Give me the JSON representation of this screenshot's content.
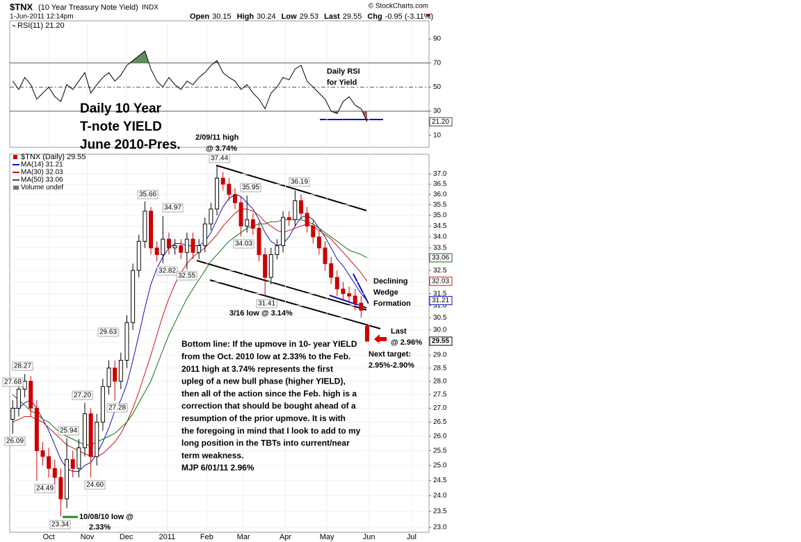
{
  "header": {
    "symbol": "$TNX",
    "name": "(10 Year Treasury Note Yield)",
    "exchange": "INDX",
    "date": "1-Jun-2011 12:14pm",
    "copyright": "© StockCharts.com",
    "quote": [
      {
        "label": "Open",
        "value": "30.15"
      },
      {
        "label": "High",
        "value": "30.24"
      },
      {
        "label": "Low",
        "value": "29.53"
      },
      {
        "label": "Last",
        "value": "29.55"
      },
      {
        "label": "Chg",
        "value": "-0.95 (-3.11%)"
      }
    ]
  },
  "chart_data": [
    {
      "type": "line",
      "legend": "RSI(11) 21.20",
      "marker_label": "21.20",
      "color": "#000000",
      "overbought_color": "#5f8f5f",
      "oversold_color": "#a06060",
      "ylim": [
        0,
        105
      ],
      "yticks": [
        10,
        30,
        50,
        70,
        90
      ],
      "reference_lines": [
        {
          "value": 70,
          "style": "solid"
        },
        {
          "value": 50,
          "style": "dashed"
        },
        {
          "value": 30,
          "style": "solid"
        }
      ],
      "xlim": [
        -0.5,
        69.3
      ],
      "values": [
        55,
        48,
        58,
        52,
        40,
        45,
        50,
        42,
        38,
        52,
        48,
        55,
        62,
        45,
        52,
        58,
        62,
        55,
        60,
        68,
        72,
        76,
        80,
        65,
        55,
        50,
        58,
        52,
        48,
        55,
        52,
        58,
        62,
        68,
        72,
        62,
        58,
        55,
        48,
        52,
        45,
        40,
        32,
        45,
        50,
        58,
        56,
        65,
        68,
        55,
        50,
        45,
        40,
        30,
        28,
        38,
        42,
        35,
        32,
        21.2
      ]
    },
    {
      "type": "candlestick",
      "legend": "$TNX (Daily) 29.55",
      "extra_legend": "Volume undef",
      "log_scale": true,
      "grid": true,
      "up_color": "#000000",
      "down_color": "#cc0000",
      "ylim": [
        22.85,
        38
      ],
      "yticks": [
        {
          "value": 23,
          "label": "23.0"
        },
        {
          "value": 23.5,
          "label": "23.5"
        },
        {
          "value": 24,
          "label": "24.0"
        },
        {
          "value": 24.5,
          "label": "24.5"
        },
        {
          "value": 25,
          "label": "25.0"
        },
        {
          "value": 25.5,
          "label": "25.5"
        },
        {
          "value": 26,
          "label": "26.0"
        },
        {
          "value": 26.5,
          "label": "26.5"
        },
        {
          "value": 27,
          "label": "27.0"
        },
        {
          "value": 27.5,
          "label": "27.5"
        },
        {
          "value": 28,
          "label": "28.0"
        },
        {
          "value": 28.5,
          "label": "28.5"
        },
        {
          "value": 29,
          "label": "29.0"
        },
        {
          "value": 29.5,
          "label": "29.5"
        },
        {
          "value": 30,
          "label": "30.0"
        },
        {
          "value": 30.5,
          "label": "30.5"
        },
        {
          "value": 31,
          "label": "31.0"
        },
        {
          "value": 31.5,
          "label": "31.5"
        },
        {
          "value": 32,
          "label": "32.0"
        },
        {
          "value": 32.5,
          "label": "32.5"
        },
        {
          "value": 33,
          "label": "33.0"
        },
        {
          "value": 33.5,
          "label": "33.5"
        },
        {
          "value": 34,
          "label": "34.0"
        },
        {
          "value": 34.5,
          "label": "34.5"
        },
        {
          "value": 35,
          "label": "35.0"
        },
        {
          "value": 35.5,
          "label": "35.5"
        },
        {
          "value": 36,
          "label": "36.0"
        },
        {
          "value": 36.5,
          "label": "36.5"
        },
        {
          "value": 37,
          "label": "37.0"
        }
      ],
      "xlim": [
        -0.5,
        69.3
      ],
      "xticks": [
        {
          "value": 6,
          "label": "Oct"
        },
        {
          "value": 12.4,
          "label": "Nov"
        },
        {
          "value": 18.9,
          "label": "Dec"
        },
        {
          "value": 25.7,
          "label": "2011"
        },
        {
          "value": 32.3,
          "label": "Feb"
        },
        {
          "value": 38.4,
          "label": "Mar"
        },
        {
          "value": 45.4,
          "label": "Apr"
        },
        {
          "value": 52.3,
          "label": "May"
        },
        {
          "value": 59.3,
          "label": "Jun"
        },
        {
          "value": 66.4,
          "label": "Jul"
        }
      ],
      "open": [
        26.6,
        27.0,
        27.7,
        28.0,
        27.0,
        25.5,
        25.3,
        24.9,
        24.6,
        23.9,
        25.2,
        24.9,
        25.6,
        26.8,
        25.3,
        26.5,
        27.8,
        28.5,
        28.0,
        28.8,
        30.3,
        32.5,
        33.8,
        35.2,
        33.5,
        33.2,
        33.9,
        33.5,
        33.6,
        33.3,
        33.9,
        33.3,
        33.6,
        34.6,
        35.3,
        36.8,
        36.5,
        36.0,
        35.6,
        34.5,
        34.8,
        34.4,
        33.2,
        32.2,
        33.2,
        33.6,
        34.9,
        34.8,
        35.7,
        35.1,
        34.5,
        34.0,
        33.5,
        32.8,
        32.2,
        31.7,
        31.5,
        31.4,
        31.1,
        30.15
      ],
      "high": [
        27.3,
        28.0,
        28.27,
        28.2,
        27.3,
        25.8,
        25.6,
        25.2,
        24.9,
        25.94,
        25.5,
        25.9,
        27.2,
        27.0,
        26.8,
        28.1,
        28.8,
        28.8,
        29.1,
        30.6,
        32.8,
        34.1,
        35.66,
        35.4,
        33.8,
        34.97,
        34.2,
        33.9,
        33.9,
        34.2,
        34.2,
        33.9,
        34.9,
        35.6,
        37.44,
        37.1,
        36.8,
        36.3,
        35.9,
        35.95,
        35.1,
        34.7,
        33.5,
        33.5,
        33.9,
        35.2,
        35.2,
        36.19,
        36.0,
        35.4,
        34.8,
        34.3,
        33.8,
        33.1,
        32.5,
        32.0,
        31.8,
        31.7,
        31.4,
        30.24
      ],
      "low": [
        26.09,
        26.7,
        27.4,
        26.7,
        24.49,
        25.0,
        24.6,
        24.3,
        23.34,
        23.6,
        24.6,
        24.6,
        25.3,
        24.6,
        25.0,
        26.2,
        27.5,
        27.28,
        27.7,
        28.5,
        30.0,
        32.2,
        33.5,
        33.2,
        32.9,
        32.82,
        33.2,
        33.2,
        33.0,
        32.55,
        33.0,
        33.0,
        33.3,
        34.3,
        35.0,
        36.2,
        35.7,
        35.3,
        34.03,
        34.2,
        34.1,
        32.9,
        31.41,
        31.9,
        33.0,
        33.3,
        34.5,
        34.5,
        34.8,
        34.2,
        33.7,
        33.2,
        32.5,
        31.9,
        31.4,
        31.2,
        31.1,
        30.8,
        30.5,
        29.53
      ],
      "close": [
        27.0,
        27.7,
        28.0,
        27.0,
        25.5,
        25.3,
        24.9,
        24.6,
        23.9,
        25.2,
        24.9,
        25.6,
        26.8,
        25.3,
        26.5,
        27.8,
        28.5,
        28.0,
        28.8,
        30.3,
        32.5,
        33.8,
        35.2,
        33.5,
        33.2,
        33.9,
        33.5,
        33.6,
        33.3,
        33.9,
        33.3,
        33.6,
        34.6,
        35.3,
        36.8,
        36.5,
        36.0,
        35.6,
        34.5,
        34.8,
        34.4,
        33.2,
        32.2,
        33.2,
        33.6,
        34.9,
        34.8,
        35.7,
        35.1,
        34.5,
        34.0,
        33.5,
        32.8,
        32.2,
        31.7,
        31.5,
        31.4,
        31.1,
        30.8,
        29.55
      ],
      "series": [
        {
          "name": "MA(14) 31.21",
          "color": "#1010c0",
          "values": [
            27.0,
            27.0,
            27.2,
            27.3,
            27.0,
            26.6,
            26.2,
            25.7,
            25.2,
            24.9,
            24.8,
            24.8,
            25.0,
            25.1,
            25.4,
            25.8,
            26.3,
            26.9,
            27.3,
            27.9,
            28.8,
            29.8,
            30.9,
            31.9,
            32.6,
            33.1,
            33.5,
            33.7,
            33.7,
            33.6,
            33.6,
            33.6,
            33.8,
            34.2,
            34.8,
            35.4,
            35.8,
            36.0,
            35.9,
            35.6,
            35.3,
            34.8,
            34.2,
            33.8,
            33.6,
            33.7,
            34.0,
            34.5,
            34.9,
            35.0,
            34.8,
            34.4,
            34.0,
            33.5,
            33.0,
            32.7,
            32.3,
            31.9,
            31.5,
            31.21
          ]
        },
        {
          "name": "MA(30) 32.03",
          "color": "#d01010",
          "values": [
            26.5,
            26.6,
            26.7,
            26.7,
            26.6,
            26.5,
            26.3,
            26.1,
            25.9,
            25.7,
            25.6,
            25.5,
            25.4,
            25.3,
            25.3,
            25.4,
            25.6,
            25.8,
            26.1,
            26.5,
            27.0,
            27.6,
            28.3,
            29.0,
            29.8,
            30.6,
            31.3,
            31.9,
            32.4,
            32.8,
            33.1,
            33.3,
            33.5,
            33.8,
            34.1,
            34.5,
            34.8,
            35.1,
            35.3,
            35.3,
            35.2,
            35.0,
            34.7,
            34.5,
            34.3,
            34.2,
            34.3,
            34.4,
            34.5,
            34.6,
            34.5,
            34.3,
            34.1,
            33.9,
            33.6,
            33.3,
            33.0,
            32.7,
            32.4,
            32.03
          ]
        },
        {
          "name": "MA(50) 33.06",
          "color": "#107010",
          "values": [
            27.5,
            27.3,
            27.1,
            26.9,
            26.8,
            26.6,
            26.5,
            26.3,
            26.1,
            26.0,
            25.9,
            25.8,
            25.7,
            25.7,
            25.8,
            25.9,
            26.0,
            26.1,
            26.3,
            26.5,
            26.8,
            27.2,
            27.6,
            28.0,
            28.6,
            29.2,
            29.8,
            30.3,
            30.8,
            31.3,
            31.7,
            32.1,
            32.5,
            32.9,
            33.2,
            33.5,
            33.8,
            34.0,
            34.2,
            34.4,
            34.5,
            34.6,
            34.6,
            34.7,
            34.7,
            34.8,
            34.8,
            34.8,
            34.8,
            34.7,
            34.6,
            34.4,
            34.2,
            34.0,
            33.8,
            33.6,
            33.4,
            33.3,
            33.2,
            33.06
          ]
        }
      ],
      "annotations": [
        {
          "text": "Daily 10 Year",
          "color": "#0000cc"
        },
        {
          "text": "T-note YIELD",
          "color": "#0000cc"
        },
        {
          "text": "June 2010-Pres.",
          "color": "#0000cc"
        },
        {
          "text": "Daily RSI",
          "color": "#000000"
        },
        {
          "text": "for Yield",
          "color": "#000000"
        },
        {
          "text": "2/09/11 high",
          "color": "#1a7a1a"
        },
        {
          "text": "@ 3.74%",
          "color": "#1a7a1a"
        },
        {
          "text": "37.44",
          "color": "#000000"
        },
        {
          "text": "35.95",
          "color": "#000000"
        },
        {
          "text": "36.19",
          "color": "#000000"
        },
        {
          "text": "35.66",
          "color": "#000000"
        },
        {
          "text": "34.97",
          "color": "#000000"
        },
        {
          "text": "34.03",
          "color": "#000000"
        },
        {
          "text": "32.82",
          "color": "#000000"
        },
        {
          "text": "32.55",
          "color": "#000000"
        },
        {
          "text": "31.41",
          "color": "#000000"
        },
        {
          "text": "29.63",
          "color": "#000000"
        },
        {
          "text": "28.27",
          "color": "#000000"
        },
        {
          "text": "27.68",
          "color": "#000000"
        },
        {
          "text": "27.20",
          "color": "#000000"
        },
        {
          "text": "27.28",
          "color": "#000000"
        },
        {
          "text": "25.94",
          "color": "#000000"
        },
        {
          "text": "26.09",
          "color": "#000000"
        },
        {
          "text": "24.60",
          "color": "#000000"
        },
        {
          "text": "24.49",
          "color": "#000000"
        },
        {
          "text": "23.34",
          "color": "#000000"
        },
        {
          "text": "3/16 low @ 3.14%",
          "color": "#1a7a1a"
        },
        {
          "text": "Declining",
          "color": "#0000cc"
        },
        {
          "text": "Wedge",
          "color": "#0000cc"
        },
        {
          "text": "Formation",
          "color": "#0000cc"
        },
        {
          "text": "Last",
          "color": "#cc0000"
        },
        {
          "text": "@ 2.96%",
          "color": "#cc0000"
        },
        {
          "text": "Next target:",
          "color": "#1a7a1a"
        },
        {
          "text": "2.95%-2.90%",
          "color": "#1a7a1a"
        },
        {
          "text": "10/08/10 low @",
          "color": "#1a7a1a"
        },
        {
          "text": "2.33%",
          "color": "#1a7a1a"
        },
        {
          "text": "Bottom line:  If the upmove in 10- year YIELD",
          "color": "#000000"
        },
        {
          "text": "from the Oct. 2010 low at 2.33% to the Feb.",
          "color": "#000000"
        },
        {
          "text": "2011 high at 3.74% represents the first",
          "color": "#000000"
        },
        {
          "text": "upleg of a new bull phase (higher YIELD),",
          "color": "#000000"
        },
        {
          "text": "then all of the action since the Feb. high is a",
          "color": "#000000"
        },
        {
          "text": "correction that should be bought ahead of a",
          "color": "#000000"
        },
        {
          "text": "resumption of the prior upmove.  It is with",
          "color": "#000000"
        },
        {
          "text": "the foregoing in mind that I look to add to my",
          "color": "#000000"
        },
        {
          "text": "long position in the TBTs into current/near",
          "color": "#000000"
        },
        {
          "text": "term weakness.",
          "color": "#000000"
        },
        {
          "text": "MJP 6/01/11 2.96%",
          "color": "#000000"
        }
      ]
    }
  ]
}
